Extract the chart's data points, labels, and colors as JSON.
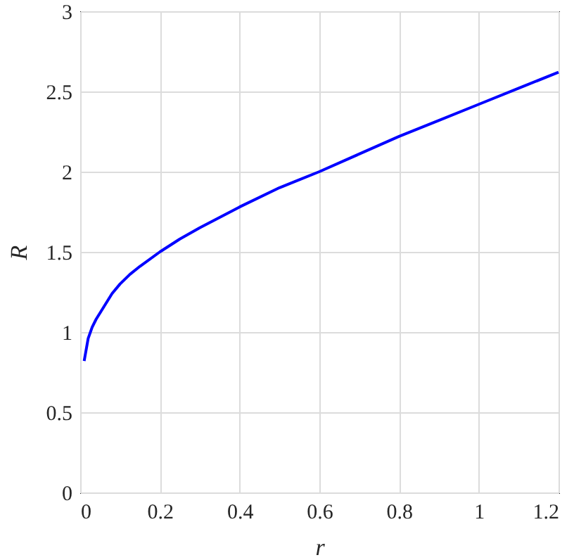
{
  "chart_data": {
    "type": "line",
    "xlabel": "r",
    "ylabel": "R",
    "x": [
      0.01,
      0.02,
      0.03,
      0.04,
      0.06,
      0.08,
      0.1,
      0.125,
      0.15,
      0.2,
      0.25,
      0.3,
      0.4,
      0.5,
      0.6,
      0.7,
      0.8,
      0.9,
      1.0,
      1.1,
      1.2
    ],
    "series": [
      {
        "color": "#0000ff",
        "values": [
          0.82,
          0.96,
          1.03,
          1.08,
          1.16,
          1.24,
          1.3,
          1.36,
          1.41,
          1.5,
          1.58,
          1.65,
          1.78,
          1.9,
          2.0,
          2.11,
          2.22,
          2.32,
          2.42,
          2.52,
          2.62
        ]
      }
    ],
    "xlim": [
      0,
      1.2
    ],
    "xticks": [
      0,
      0.2,
      0.4,
      0.6,
      0.8,
      1,
      1.2
    ],
    "ylim": [
      0,
      3
    ],
    "yticks": [
      0,
      0.5,
      1,
      1.5,
      2,
      2.5,
      3
    ],
    "grid": true,
    "marker": "none",
    "line_style": "solid"
  }
}
